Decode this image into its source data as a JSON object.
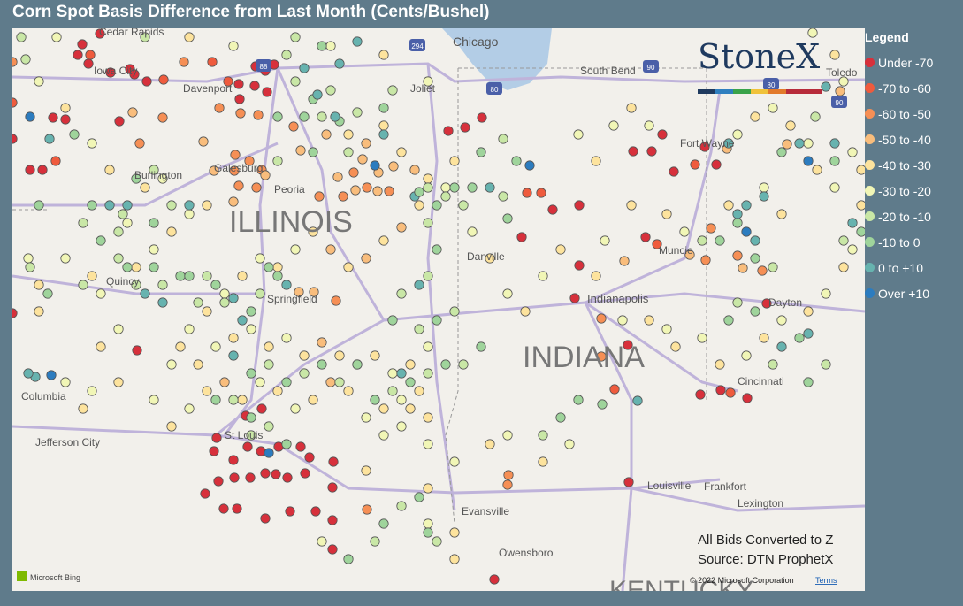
{
  "header": {
    "title": "Corn Spot Basis Difference from Last Month (Cents/Bushel)"
  },
  "legend": {
    "title": "Legend",
    "items": [
      {
        "label": "Under -70",
        "color": "#d7303b"
      },
      {
        "label": "-70 to -60",
        "color": "#ef5b3d"
      },
      {
        "label": "-60 to -50",
        "color": "#f68f55"
      },
      {
        "label": "-50 to -40",
        "color": "#f9bd7c"
      },
      {
        "label": "-40 to -30",
        "color": "#fde39d"
      },
      {
        "label": "-30 to -20",
        "color": "#f1f6b6"
      },
      {
        "label": "-20 to -10",
        "color": "#c9e7a6"
      },
      {
        "label": "-10 to 0",
        "color": "#9fd49b"
      },
      {
        "label": "0 to +10",
        "color": "#67b3af"
      },
      {
        "label": "Over +10",
        "color": "#2c7cbf"
      }
    ]
  },
  "map_labels": [
    "Cedar Rapids",
    "Iowa City",
    "Chicago",
    "South Bend",
    "Toledo",
    "Joliet",
    "Davenport",
    "Galesburg",
    "Burlington",
    "Peoria",
    "ILLINOIS",
    "Danville",
    "Springfield",
    "Quincy",
    "Indianapolis",
    "Muncie",
    "Fort Wayne",
    "INDIANA",
    "Dayton",
    "Cincinnati",
    "Columbia",
    "Jefferson City",
    "St Louis",
    "Louisville",
    "Frankfort",
    "Lexington",
    "Evansville",
    "Owensboro",
    "KENTUCKY"
  ],
  "highway_shields": [
    "294",
    "88",
    "90",
    "80",
    "80",
    "90"
  ],
  "logo": "StoneX",
  "notes": [
    "All Bids Converted to Z",
    "Source: DTN ProphetX"
  ],
  "attribution": {
    "provider": "Microsoft Bing",
    "copyright": "© 2022 Microsoft Corporation",
    "terms": "Terms"
  }
}
